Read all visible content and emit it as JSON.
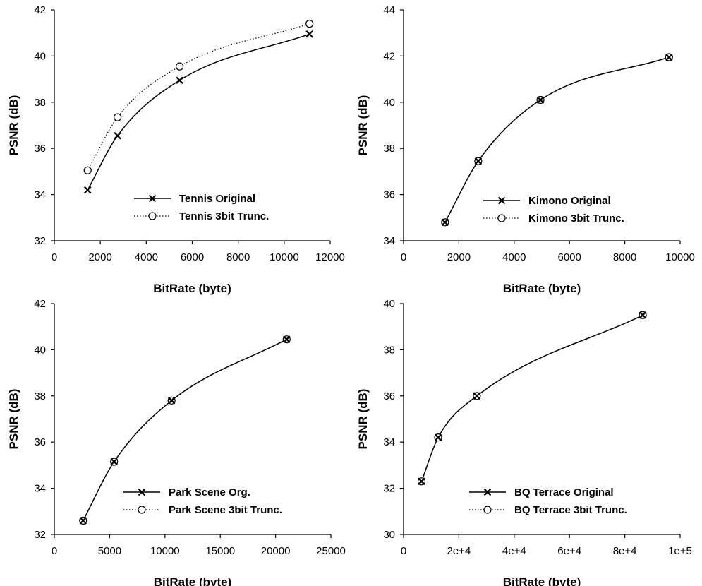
{
  "chart_data": [
    {
      "type": "line",
      "xlabel": "BitRate (byte)",
      "ylabel": "PSNR (dB)",
      "xlim": [
        0,
        12000
      ],
      "ylim": [
        32,
        42
      ],
      "x_ticks": [
        "0",
        "2000",
        "4000",
        "6000",
        "8000",
        "10000",
        "12000"
      ],
      "y_ticks": [
        "32",
        "34",
        "36",
        "38",
        "40",
        "42"
      ],
      "legend_position": "bottom-right",
      "grid": false,
      "series": [
        {
          "name": "Tennis Original",
          "marker": "x",
          "line": "solid",
          "x": [
            1450,
            2750,
            5450,
            11100
          ],
          "y": [
            34.2,
            36.55,
            38.95,
            40.95
          ]
        },
        {
          "name": "Tennis 3bit Trunc.",
          "marker": "circle",
          "line": "dotted",
          "x": [
            1450,
            2750,
            5450,
            11100
          ],
          "y": [
            35.05,
            37.35,
            39.55,
            41.4
          ]
        }
      ]
    },
    {
      "type": "line",
      "xlabel": "BitRate (byte)",
      "ylabel": "PSNR (dB)",
      "xlim": [
        0,
        10000
      ],
      "ylim": [
        34,
        44
      ],
      "x_ticks": [
        "0",
        "2000",
        "4000",
        "6000",
        "8000",
        "10000"
      ],
      "y_ticks": [
        "34",
        "36",
        "38",
        "40",
        "42",
        "44"
      ],
      "legend_position": "bottom-right",
      "grid": false,
      "series": [
        {
          "name": "Kimono Original",
          "marker": "x",
          "line": "solid",
          "x": [
            1500,
            2700,
            4950,
            9600
          ],
          "y": [
            34.8,
            37.45,
            40.1,
            41.95
          ]
        },
        {
          "name": "Kimono 3bit Trunc.",
          "marker": "circle",
          "line": "dotted",
          "x": [
            1500,
            2700,
            4950,
            9600
          ],
          "y": [
            34.8,
            37.45,
            40.1,
            41.95
          ]
        }
      ]
    },
    {
      "type": "line",
      "xlabel": "BitRate (byte)",
      "ylabel": "PSNR (dB)",
      "xlim": [
        0,
        25000
      ],
      "ylim": [
        32,
        42
      ],
      "x_ticks": [
        "0",
        "5000",
        "10000",
        "15000",
        "20000",
        "25000"
      ],
      "y_ticks": [
        "32",
        "34",
        "36",
        "38",
        "40",
        "42"
      ],
      "legend_position": "bottom-right",
      "grid": false,
      "series": [
        {
          "name": "Park Scene Org.",
          "marker": "x",
          "line": "solid",
          "x": [
            2600,
            5400,
            10600,
            21000
          ],
          "y": [
            32.6,
            35.15,
            37.8,
            40.45
          ]
        },
        {
          "name": "Park Scene 3bit Trunc.",
          "marker": "circle",
          "line": "dotted",
          "x": [
            2600,
            5400,
            10600,
            21000
          ],
          "y": [
            32.6,
            35.15,
            37.8,
            40.45
          ]
        }
      ]
    },
    {
      "type": "line",
      "xlabel": "BitRate (byte)",
      "ylabel": "PSNR (dB)",
      "xlim": [
        0,
        100000
      ],
      "ylim": [
        30,
        40
      ],
      "x_ticks": [
        "0",
        "2e+4",
        "4e+4",
        "6e+4",
        "8e+4",
        "1e+5"
      ],
      "y_ticks": [
        "30",
        "32",
        "34",
        "36",
        "38",
        "40"
      ],
      "legend_position": "bottom-right",
      "grid": false,
      "series": [
        {
          "name": "BQ Terrace Original",
          "marker": "x",
          "line": "solid",
          "x": [
            6500,
            12500,
            26500,
            86500
          ],
          "y": [
            32.3,
            34.2,
            36.0,
            39.5
          ]
        },
        {
          "name": "BQ Terrace 3bit Trunc.",
          "marker": "circle",
          "line": "dotted",
          "x": [
            6500,
            12500,
            26500,
            86500
          ],
          "y": [
            32.3,
            34.2,
            36.0,
            39.5
          ]
        }
      ]
    }
  ]
}
